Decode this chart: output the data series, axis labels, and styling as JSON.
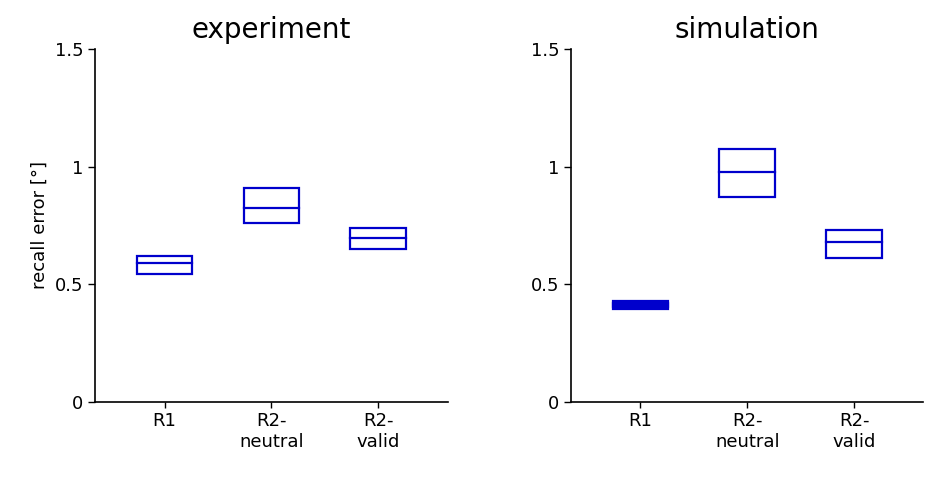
{
  "experiment": {
    "title": "experiment",
    "categories": [
      "R1",
      "R2-\nneutral",
      "R2-\nvalid"
    ],
    "boxes": [
      {
        "q1": 0.545,
        "median": 0.59,
        "q3": 0.622
      },
      {
        "q1": 0.762,
        "median": 0.825,
        "q3": 0.91
      },
      {
        "q1": 0.648,
        "median": 0.698,
        "q3": 0.738
      }
    ]
  },
  "simulation": {
    "title": "simulation",
    "categories": [
      "R1",
      "R2-\nneutral",
      "R2-\nvalid"
    ],
    "boxes": [
      {
        "q1": 0.395,
        "median": 0.413,
        "q3": 0.43,
        "extra_lines": [
          0.404,
          0.421
        ]
      },
      {
        "q1": 0.87,
        "median": 0.975,
        "q3": 1.075
      },
      {
        "q1": 0.61,
        "median": 0.678,
        "q3": 0.73
      }
    ]
  },
  "ylabel": "recall error [°]",
  "ylim": [
    0,
    1.5
  ],
  "yticks": [
    0,
    0.5,
    1.0,
    1.5
  ],
  "ytick_labels": [
    "0",
    "0.5",
    "1",
    "1.5"
  ],
  "box_color": "#0000CC",
  "box_width": 0.52,
  "background_color": "#ffffff",
  "title_fontsize": 20,
  "label_fontsize": 13,
  "tick_fontsize": 13,
  "linewidth": 1.6
}
